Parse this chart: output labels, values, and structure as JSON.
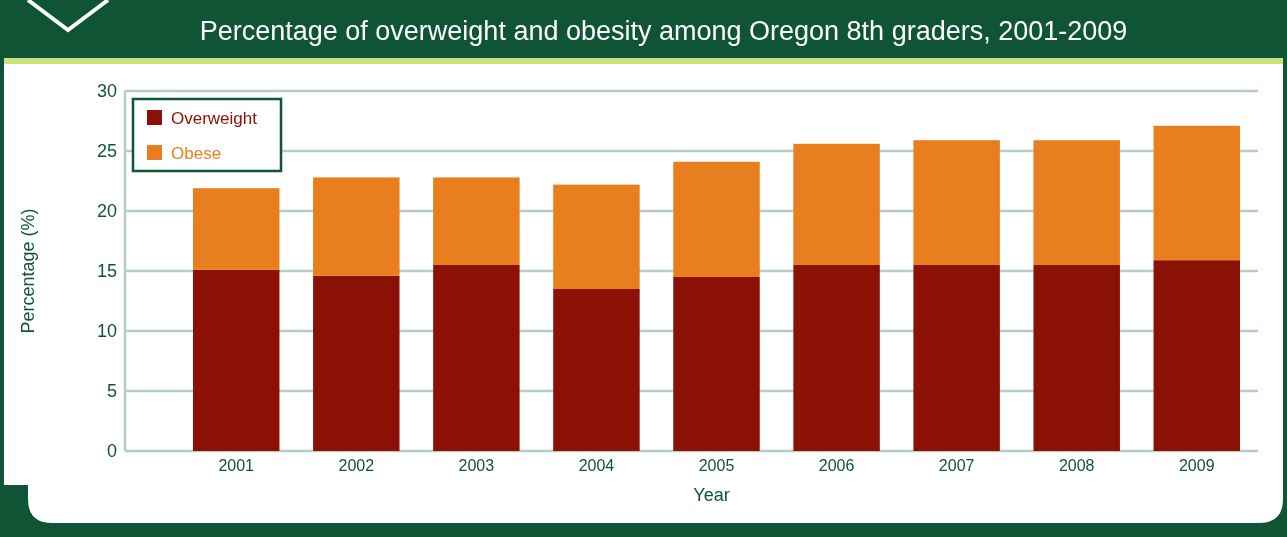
{
  "chart_data": {
    "type": "bar",
    "title": "Percentage of overweight and obesity among Oregon 8th graders, 2001-2009",
    "xlabel": "Year",
    "ylabel": "Percentage (%)",
    "categories": [
      "2001",
      "2002",
      "2003",
      "2004",
      "2005",
      "2006",
      "2007",
      "2008",
      "2009"
    ],
    "stacked": true,
    "series": [
      {
        "name": "Overweight",
        "color": "#8b1005",
        "values": [
          15.1,
          14.6,
          15.5,
          13.5,
          14.5,
          15.5,
          15.5,
          15.5,
          15.9
        ]
      },
      {
        "name": "Obese",
        "color": "#e87e1e",
        "values": [
          6.8,
          8.2,
          7.3,
          8.7,
          9.6,
          10.1,
          10.4,
          10.4,
          11.2
        ]
      }
    ],
    "ylim": [
      0,
      30
    ],
    "yticks": [
      0,
      5,
      10,
      15,
      20,
      25,
      30
    ],
    "grid": "y",
    "legend": "top left"
  }
}
